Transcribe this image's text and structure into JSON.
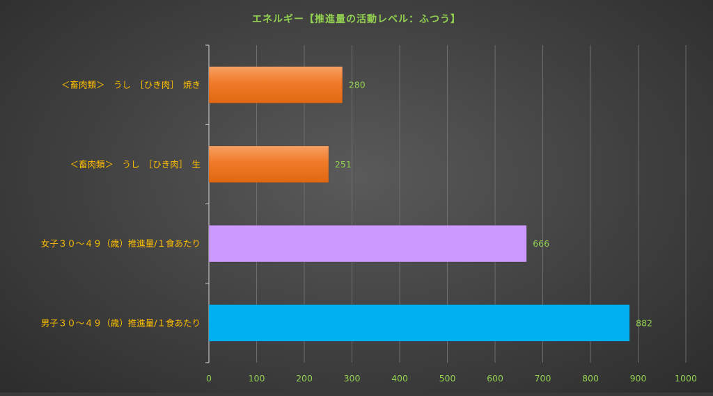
{
  "chart_data": {
    "type": "bar",
    "orientation": "horizontal",
    "title": "エネルギー【推進量の活動レベル：ふつう】",
    "categories": [
      "＜畜肉類＞　うし　［ひき肉］　焼き",
      "＜畜肉類＞　うし　［ひき肉］　生",
      "女子３０～４９（歳）推進量/１食あたり",
      "男子３０～４９（歳）推進量/１食あたり"
    ],
    "values": [
      280,
      251,
      666,
      882
    ],
    "data_labels": [
      "280",
      "251",
      "666",
      "882"
    ],
    "bar_colors": [
      "#f07a28",
      "#f07a28",
      "#cc99ff",
      "#00b0f0"
    ],
    "xlim": [
      0,
      1000
    ],
    "x_ticks": [
      0,
      100,
      200,
      300,
      400,
      500,
      600,
      700,
      800,
      900,
      1000
    ],
    "x_tick_labels": [
      "0",
      "100",
      "200",
      "300",
      "400",
      "500",
      "600",
      "700",
      "800",
      "900",
      "1000"
    ],
    "grid": true,
    "xlabel": "",
    "ylabel": "",
    "colors": {
      "title": "#92d050",
      "category_labels": "#ffc000",
      "tick_labels": "#92d050",
      "data_labels": "#92d050",
      "gridlines": "#6e6e6e",
      "axis": "#d9d9d9"
    }
  }
}
